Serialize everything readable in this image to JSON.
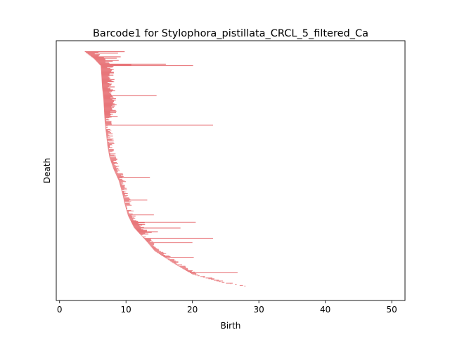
{
  "chart_data": {
    "type": "barcode",
    "title": "Barcode1 for Stylophora_pistillata_CRCL_5_filtered_Ca",
    "xlabel": "Birth",
    "ylabel": "Death",
    "xlim": [
      -0.5,
      52
    ],
    "xticks": [
      0,
      10,
      20,
      30,
      40,
      50
    ],
    "xtick_labels": [
      "0",
      "10",
      "20",
      "30",
      "40",
      "50"
    ],
    "yticks_visible": false,
    "grid": false,
    "bar_color": "#e8767a",
    "bar_count": 320,
    "bars": [
      [
        3.7,
        9.8
      ],
      [
        4.3,
        8.8
      ],
      [
        5.0,
        9.2
      ],
      [
        5.3,
        8.6
      ],
      [
        5.6,
        8.9
      ],
      [
        5.8,
        8.0
      ],
      [
        6.2,
        16.0
      ],
      [
        6.3,
        10.8
      ],
      [
        6.3,
        20.1
      ],
      [
        6.8,
        14.6
      ],
      [
        7.1,
        23.1
      ],
      [
        8.9,
        13.6
      ],
      [
        9.9,
        13.2
      ],
      [
        10.5,
        14.2
      ],
      [
        11.0,
        20.5
      ],
      [
        11.5,
        18.2
      ],
      [
        12.0,
        14.8
      ],
      [
        12.9,
        23.1
      ],
      [
        13.5,
        20.0
      ],
      [
        16.0,
        20.2
      ],
      [
        19.8,
        26.8
      ],
      [
        27.9,
        28.0
      ]
    ],
    "envelope_birth": [
      [
        0.0,
        3.8
      ],
      [
        0.03,
        5.2
      ],
      [
        0.06,
        6.2
      ],
      [
        0.1,
        6.3
      ],
      [
        0.15,
        6.4
      ],
      [
        0.2,
        6.6
      ],
      [
        0.25,
        6.7
      ],
      [
        0.3,
        6.8
      ],
      [
        0.35,
        7.0
      ],
      [
        0.4,
        7.2
      ],
      [
        0.45,
        7.5
      ],
      [
        0.5,
        8.1
      ],
      [
        0.55,
        8.9
      ],
      [
        0.6,
        9.4
      ],
      [
        0.65,
        9.8
      ],
      [
        0.7,
        10.3
      ],
      [
        0.75,
        11.2
      ],
      [
        0.8,
        12.8
      ],
      [
        0.85,
        14.3
      ],
      [
        0.9,
        17.0
      ],
      [
        0.95,
        20.0
      ],
      [
        0.985,
        24.5
      ],
      [
        1.0,
        27.8
      ]
    ]
  }
}
